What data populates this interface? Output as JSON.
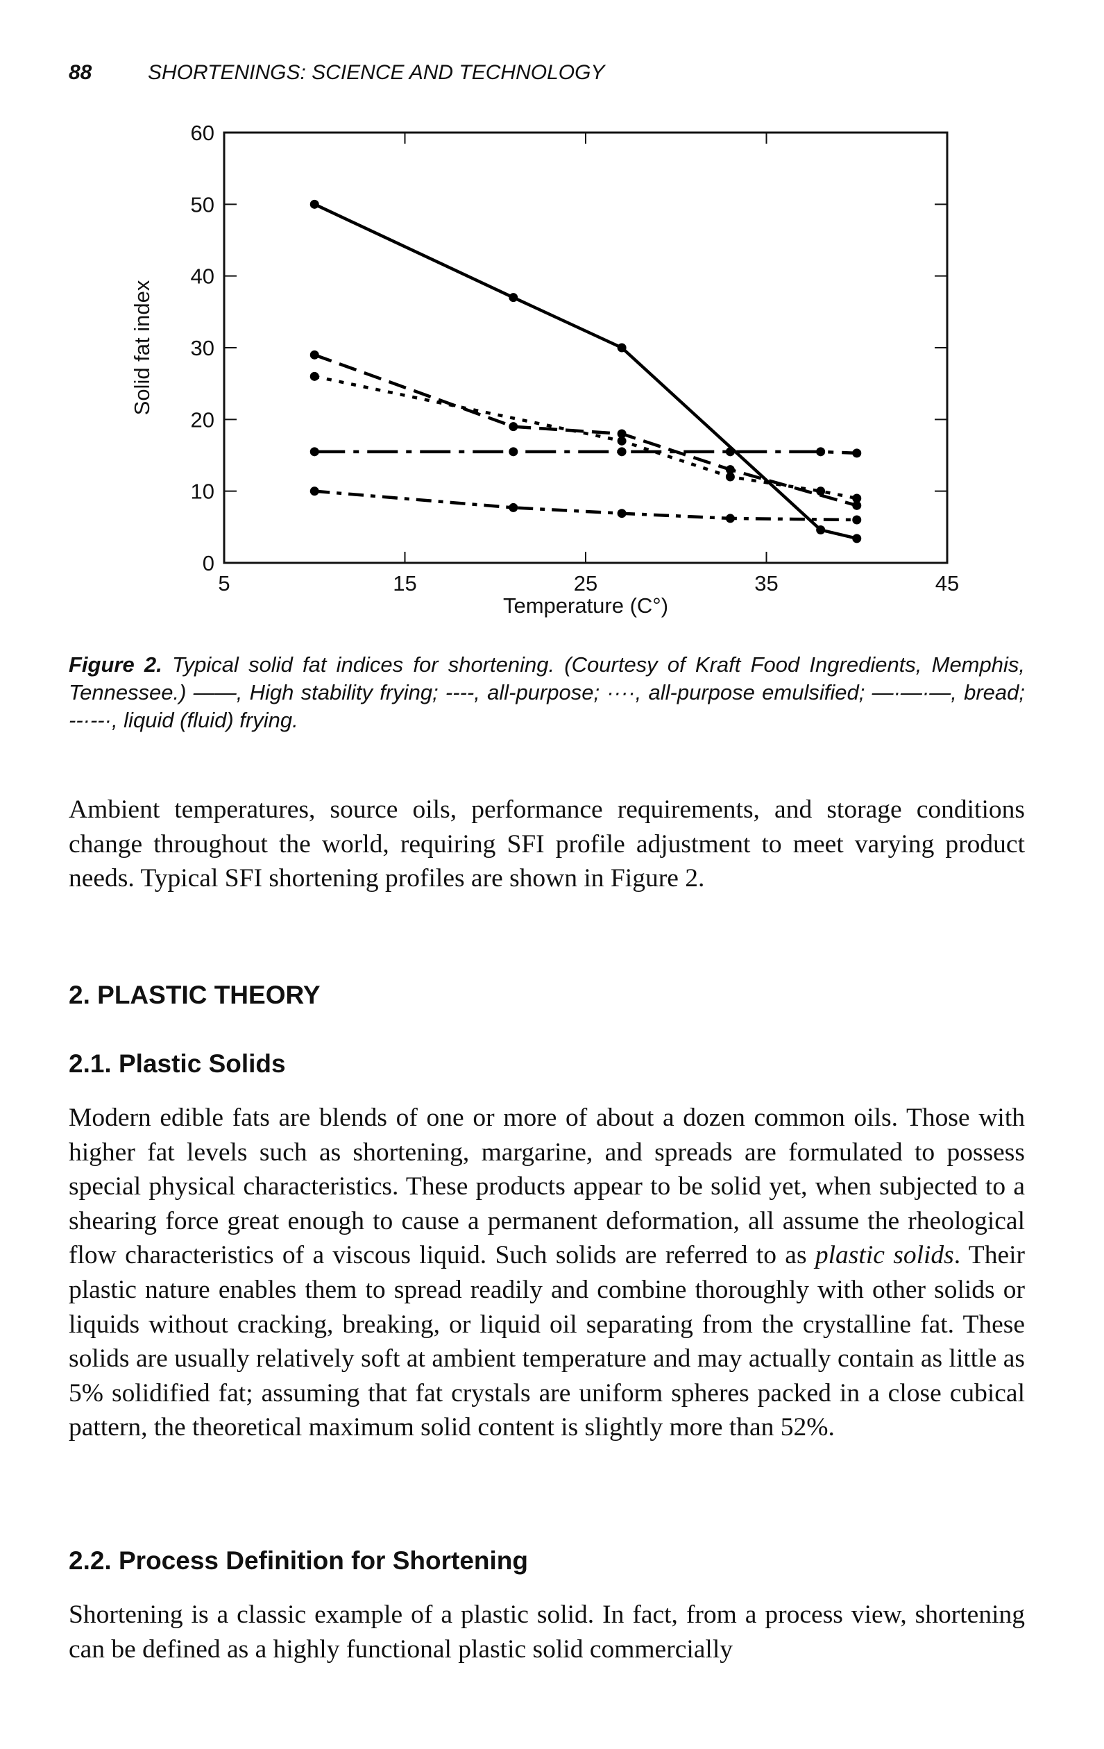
{
  "header": {
    "page_number": "88",
    "running_title": "SHORTENINGS: SCIENCE AND TECHNOLOGY"
  },
  "chart_data": {
    "type": "line",
    "xlabel": "Temperature (C°)",
    "ylabel": "Solid fat index",
    "xlim": [
      5,
      45
    ],
    "ylim": [
      0,
      60
    ],
    "xticks": [
      5,
      15,
      25,
      35,
      45
    ],
    "yticks": [
      0,
      10,
      20,
      30,
      40,
      50,
      60
    ],
    "series": [
      {
        "color": "#000000",
        "dash": "solid",
        "x": [
          10,
          21,
          27,
          38,
          40
        ],
        "values": [
          50,
          37,
          30,
          4.6,
          3.4
        ]
      },
      {
        "color": "#000000",
        "dash": "dashed",
        "x": [
          10,
          21,
          27,
          33,
          40
        ],
        "values": [
          29,
          19,
          18,
          13,
          8
        ]
      },
      {
        "color": "#000000",
        "dash": "dotted",
        "x": [
          10,
          27,
          33,
          38,
          40
        ],
        "values": [
          26,
          17,
          12,
          10,
          9
        ]
      },
      {
        "color": "#000000",
        "dash": "dashdot",
        "x": [
          10,
          21,
          27,
          33,
          38,
          40
        ],
        "values": [
          15.5,
          15.5,
          15.5,
          15.5,
          15.5,
          15.3
        ]
      },
      {
        "color": "#000000",
        "dash": "dashdotdot",
        "x": [
          10,
          21,
          27,
          33,
          40
        ],
        "values": [
          10,
          7.7,
          6.9,
          6.2,
          6
        ]
      }
    ]
  },
  "caption": {
    "label": "Figure 2.",
    "text": "Typical solid fat indices for shortening. (Courtesy of Kraft Food Ingredients, Memphis, Tennessee.) ——, High stability frying; ----, all-purpose; ····, all-purpose emulsified; —·—·—, bread; --·--·, liquid (fluid) frying."
  },
  "paragraph_1": "Ambient temperatures, source oils, performance requirements, and storage conditions change throughout the world, requiring SFI profile adjustment to meet varying product needs. Typical SFI shortening profiles are shown in Figure 2.",
  "section_2": {
    "heading": "2. PLASTIC THEORY"
  },
  "section_2_1": {
    "heading": "2.1. Plastic Solids",
    "text_before": "Modern edible fats are blends of one or more of about a dozen common oils. Those with higher fat levels such as shortening, margarine, and spreads are formulated to possess special physical characteristics. These products appear to be solid yet, when subjected to a shearing force great enough to cause a permanent deformation, all assume the rheological flow characteristics of a viscous liquid. Such solids are referred to as",
    "emphasis": "plastic solids",
    "text_after": ". Their plastic nature enables them to spread readily and combine thoroughly with other solids or liquids without cracking, breaking, or liquid oil separating from the crystalline fat. These solids are usually relatively soft at ambient temperature and may actually contain as little as 5% solidified fat; assuming that fat crystals are uniform spheres packed in a close cubical pattern, the theoretical maximum solid content is slightly more than 52%."
  },
  "section_2_2": {
    "heading": "2.2. Process Definition for Shortening",
    "text": "Shortening is a classic example of a plastic solid. In fact, from a process view, shortening can be defined as a highly functional plastic solid commercially"
  }
}
